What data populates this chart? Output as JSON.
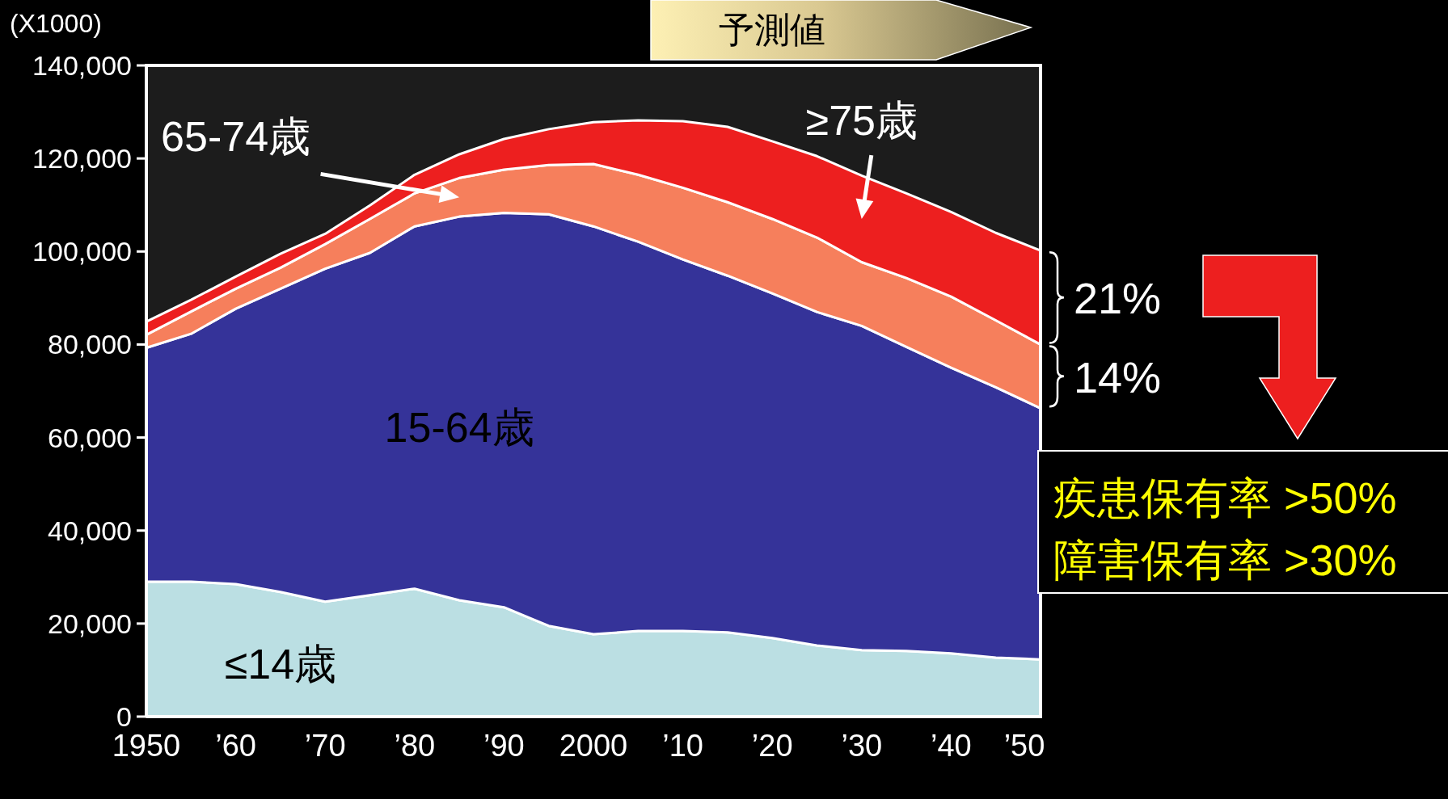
{
  "chart_data": {
    "type": "area",
    "stacked": true,
    "ylabel": "(X1000)",
    "x": [
      1950,
      1955,
      1960,
      1965,
      1970,
      1975,
      1980,
      1985,
      1990,
      1995,
      2000,
      2005,
      2010,
      2015,
      2020,
      2025,
      2030,
      2035,
      2040,
      2045,
      2050
    ],
    "xlim": [
      1950,
      2050
    ],
    "xticks": [
      {
        "value": 1950,
        "label": "1950"
      },
      {
        "value": 1960,
        "label": "’60"
      },
      {
        "value": 1970,
        "label": "’70"
      },
      {
        "value": 1980,
        "label": "’80"
      },
      {
        "value": 1990,
        "label": "’90"
      },
      {
        "value": 2000,
        "label": "2000"
      },
      {
        "value": 2010,
        "label": "’10"
      },
      {
        "value": 2020,
        "label": "’20"
      },
      {
        "value": 2030,
        "label": "’30"
      },
      {
        "value": 2040,
        "label": "’40"
      },
      {
        "value": 2050,
        "label": "’50"
      }
    ],
    "ylim": [
      0,
      140000
    ],
    "yticks": [
      0,
      {
        "value": 20000,
        "label": "20,000"
      },
      {
        "value": 40000,
        "label": "40,000"
      },
      {
        "value": 60000,
        "label": "60,000"
      },
      {
        "value": 80000,
        "label": "80,000"
      },
      {
        "value": 100000,
        "label": "100,000"
      },
      {
        "value": 120000,
        "label": "120,000"
      },
      {
        "value": 140000,
        "label": "140,000"
      }
    ],
    "series": [
      {
        "name": "≤14歳",
        "color": "#bbdfe3",
        "values": [
          29000,
          29000,
          28500,
          26800,
          24700,
          26100,
          27500,
          25000,
          23500,
          19500,
          17700,
          18400,
          18400,
          18100,
          16900,
          15300,
          14300,
          14100,
          13600,
          12700,
          12300
        ]
      },
      {
        "name": "15-64歳",
        "color": "#353399",
        "values": [
          50300,
          53300,
          59200,
          65200,
          71600,
          73600,
          77900,
          82500,
          84800,
          88500,
          87700,
          83700,
          79900,
          76700,
          74100,
          71700,
          69700,
          65400,
          61400,
          58100,
          54000
        ]
      },
      {
        "name": "65-74歳",
        "color": "#f67f5c",
        "values": [
          2800,
          4800,
          4300,
          4500,
          5300,
          7300,
          7100,
          8300,
          9300,
          10600,
          13400,
          14400,
          15400,
          15800,
          16000,
          16000,
          13700,
          14800,
          15300,
          14400,
          13700
        ]
      },
      {
        "name": "≥75歳",
        "color": "#ed1f1f",
        "values": [
          2800,
          2500,
          2600,
          3000,
          2200,
          2900,
          4000,
          5100,
          6600,
          7700,
          9000,
          11700,
          14300,
          16200,
          16700,
          17500,
          18600,
          18200,
          18200,
          18800,
          20200
        ]
      }
    ],
    "annotations": [
      "予測値",
      "21%",
      "14%",
      "疾患保有率 >50%",
      "障害保有率 >30%"
    ]
  }
}
